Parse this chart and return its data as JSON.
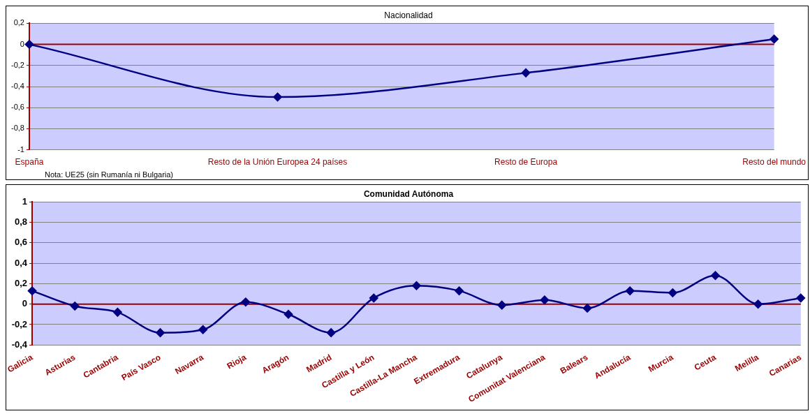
{
  "chart_data": [
    {
      "type": "line",
      "title": "Nacionalidad",
      "categories": [
        "España",
        "Resto de la Unión Europea 24 países",
        "Resto de Europa",
        "Resto del mundo"
      ],
      "series": [
        {
          "color": "#000080",
          "values": [
            0,
            -0.5,
            -0.27,
            0.05
          ]
        }
      ],
      "ylim": [
        -1,
        0.2
      ],
      "yticks": [
        -1,
        {
          "value": -0.8,
          "label": "-0,8"
        },
        {
          "value": -0.6,
          "label": "-0,6"
        },
        {
          "value": -0.4,
          "label": "-0,4"
        },
        {
          "value": -0.2,
          "label": "-0,2"
        },
        0,
        {
          "value": 0.2,
          "label": "0,2"
        }
      ],
      "grid": "y",
      "marker": "diamond",
      "legend": false,
      "ref_lines": [
        {
          "axis": "y",
          "value": 0,
          "color": "#990000"
        }
      ],
      "annotations": [
        "Nota: UE25 (sin Rumanía ni Bulgaria)"
      ]
    },
    {
      "type": "line",
      "title": "Comunidad Autónoma",
      "categories": [
        "Galicia",
        "Asturias",
        "Cantabria",
        "País Vasco",
        "Navarra",
        "Rioja",
        "Aragón",
        "Madrid",
        "Castilla y León",
        "Castilla-La Mancha",
        "Extremadura",
        "Catalunya",
        "Comunitat Valenciana",
        "Balears",
        "Andalucía",
        "Murcia",
        "Ceuta",
        "Melilla",
        "Canarias"
      ],
      "series": [
        {
          "color": "#000080",
          "values": [
            0.13,
            -0.02,
            -0.08,
            -0.28,
            -0.25,
            0.02,
            -0.1,
            -0.28,
            0.06,
            0.18,
            0.13,
            -0.01,
            0.04,
            -0.04,
            0.13,
            0.11,
            0.28,
            0,
            0.06
          ]
        }
      ],
      "ylim": [
        -0.4,
        1
      ],
      "yticks": [
        {
          "value": -0.4,
          "label": "-0,4"
        },
        {
          "value": -0.2,
          "label": "-0,2"
        },
        0,
        {
          "value": 0.2,
          "label": "0,2"
        },
        {
          "value": 0.4,
          "label": "0,4"
        },
        {
          "value": 0.6,
          "label": "0,6"
        },
        {
          "value": 0.8,
          "label": "0,8"
        },
        1
      ],
      "grid": "y",
      "marker": "diamond",
      "legend": false,
      "ref_lines": [
        {
          "axis": "y",
          "value": 0,
          "color": "#990000"
        }
      ]
    }
  ]
}
